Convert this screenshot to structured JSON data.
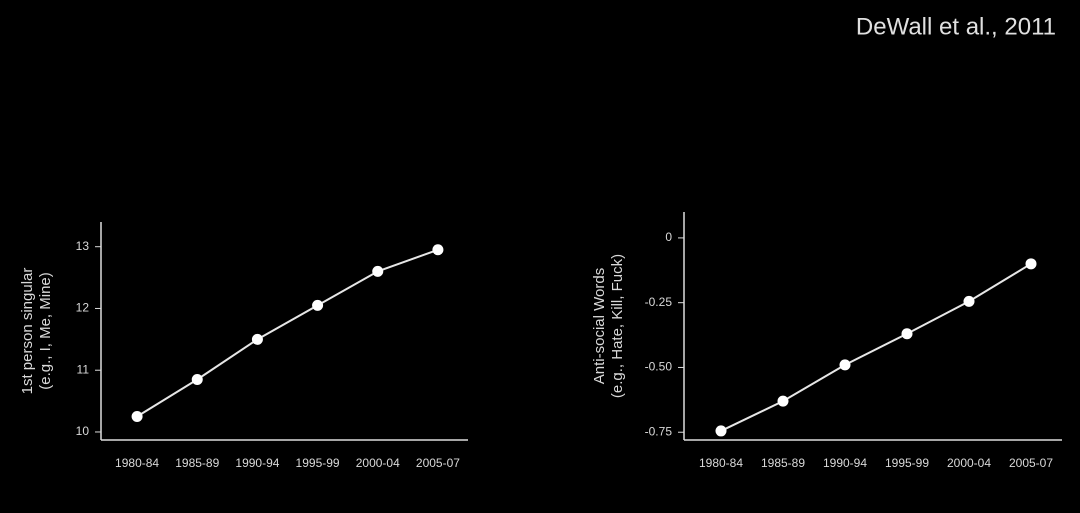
{
  "source": "DeWall et al., 2011",
  "chart_data": [
    {
      "type": "line",
      "ylabel": [
        "1st person singular",
        "(e.g., I, Me, Mine)"
      ],
      "categories": [
        "1980-84",
        "1985-89",
        "1990-94",
        "1995-99",
        "2000-04",
        "2005-07"
      ],
      "series": [
        {
          "color": "#e6e6e6",
          "values": [
            10.25,
            10.85,
            11.5,
            12.05,
            12.6,
            12.95
          ]
        }
      ],
      "ylim": [
        9.87,
        13.4
      ],
      "yticks": [
        10,
        11,
        12,
        13
      ]
    },
    {
      "type": "line",
      "ylabel": [
        "Anti-social Words",
        "(e.g., Hate, Kill, Fuck)"
      ],
      "categories": [
        "1980-84",
        "1985-89",
        "1990-94",
        "1995-99",
        "2000-04",
        "2005-07"
      ],
      "series": [
        {
          "color": "#e6e6e6",
          "values": [
            -0.745,
            -0.63,
            -0.49,
            -0.37,
            -0.245,
            -0.1
          ]
        }
      ],
      "ylim": [
        -0.78,
        0.1
      ],
      "yticks": [
        {
          "value": -0.75,
          "label": "-0.75"
        },
        {
          "value": -0.5,
          "label": "-0.50"
        },
        {
          "value": -0.25,
          "label": "-0.25"
        },
        0
      ]
    }
  ]
}
